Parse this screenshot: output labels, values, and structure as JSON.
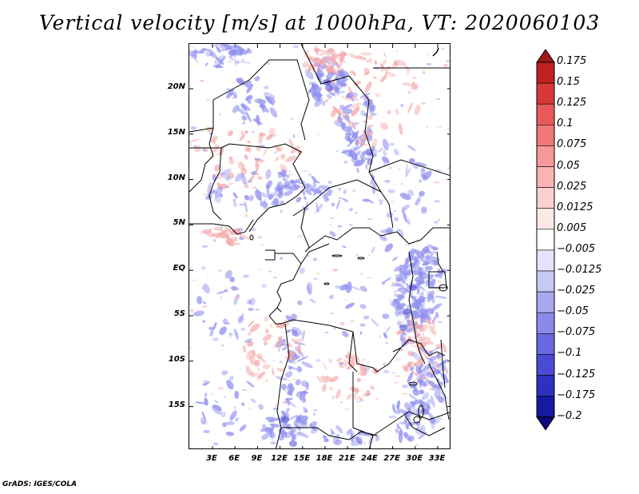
{
  "title": "Vertical velocity [m/s] at 1000hPa, VT: 2020060103",
  "map": {
    "lat_ticks": [
      "20N",
      "15N",
      "10N",
      "5N",
      "EQ",
      "5S",
      "10S",
      "15S"
    ],
    "lon_ticks": [
      "3E",
      "6E",
      "9E",
      "12E",
      "15E",
      "18E",
      "21E",
      "24E",
      "27E",
      "30E",
      "33E"
    ],
    "colors": {
      "positive": "#f4a6a6",
      "negative": "#8f8ff0",
      "border": "#000000"
    }
  },
  "colorbar": {
    "labels": [
      "0.175",
      "0.15",
      "0.125",
      "0.1",
      "0.075",
      "0.05",
      "0.025",
      "0.0125",
      "0.005",
      "−0.005",
      "−0.0125",
      "−0.025",
      "−0.05",
      "−0.075",
      "−0.1",
      "−0.125",
      "−0.175",
      "−0.2"
    ],
    "colors": [
      "#a01818",
      "#c02222",
      "#d83838",
      "#e85a5a",
      "#f07878",
      "#f59898",
      "#f8b4b4",
      "#fbd0d0",
      "#fde8e8",
      "#ffffff",
      "#e4e4fb",
      "#c8c8f6",
      "#a8a8f1",
      "#8a8aeb",
      "#6868e0",
      "#4a4ad4",
      "#3030c0",
      "#1818a0",
      "#0c0c80"
    ]
  },
  "credit": "GrADS: IGES/COLA"
}
